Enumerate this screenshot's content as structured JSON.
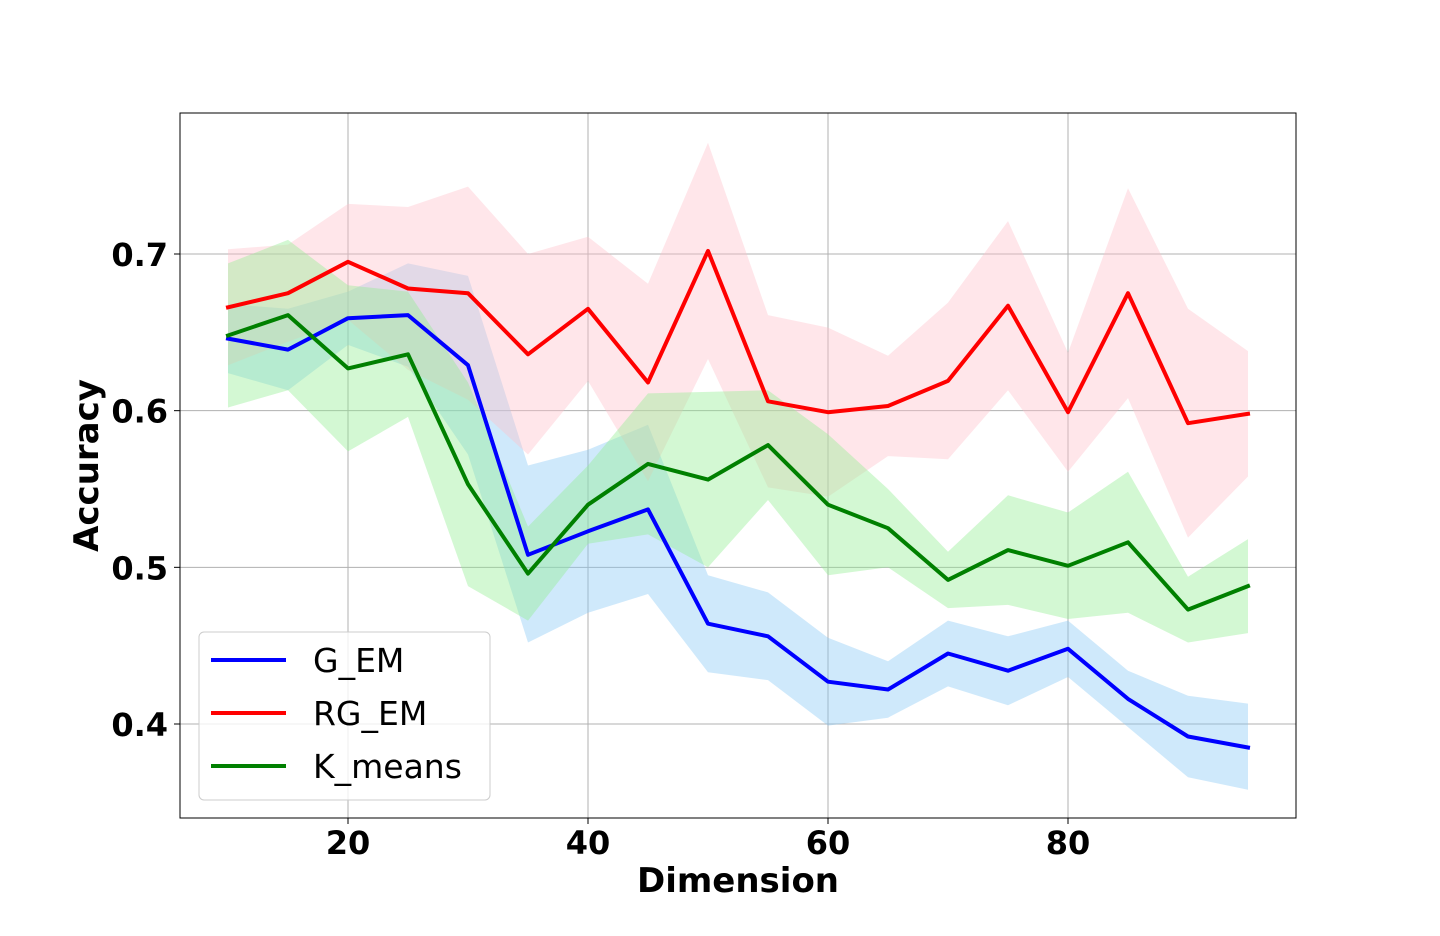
{
  "chart_data": {
    "type": "line",
    "title": "",
    "xlabel": "Dimension",
    "ylabel": "Accuracy",
    "xlim": [
      6,
      99
    ],
    "ylim": [
      0.34,
      0.79
    ],
    "xticks": [
      20,
      40,
      60,
      80
    ],
    "xtick_labels": [
      "20",
      "40",
      "60",
      "80"
    ],
    "yticks": [
      0.4,
      0.5,
      0.6,
      0.7
    ],
    "ytick_labels": [
      "0.4",
      "0.5",
      "0.6",
      "0.7"
    ],
    "grid": true,
    "legend_position": "bottom-left",
    "x": [
      10,
      15,
      20,
      25,
      30,
      35,
      40,
      45,
      50,
      55,
      60,
      65,
      70,
      75,
      80,
      85,
      90,
      95
    ],
    "series": [
      {
        "name": "G_EM",
        "color": "#0000ff",
        "band_color": "#87c8f5",
        "values": [
          0.646,
          0.639,
          0.659,
          0.661,
          0.629,
          0.508,
          0.523,
          0.537,
          0.464,
          0.456,
          0.427,
          0.422,
          0.445,
          0.434,
          0.448,
          0.416,
          0.392,
          0.385
        ],
        "upper": [
          0.668,
          0.665,
          0.676,
          0.694,
          0.686,
          0.565,
          0.575,
          0.591,
          0.495,
          0.484,
          0.455,
          0.44,
          0.466,
          0.456,
          0.466,
          0.434,
          0.418,
          0.413
        ],
        "lower": [
          0.624,
          0.613,
          0.642,
          0.628,
          0.572,
          0.452,
          0.471,
          0.483,
          0.433,
          0.428,
          0.399,
          0.404,
          0.424,
          0.412,
          0.43,
          0.398,
          0.366,
          0.358
        ]
      },
      {
        "name": "RG_EM",
        "color": "#ff0000",
        "band_color": "#ffc0cb",
        "values": [
          0.666,
          0.675,
          0.695,
          0.678,
          0.675,
          0.636,
          0.665,
          0.618,
          0.702,
          0.606,
          0.599,
          0.603,
          0.619,
          0.667,
          0.599,
          0.675,
          0.592,
          0.598
        ],
        "upper": [
          0.703,
          0.706,
          0.732,
          0.73,
          0.743,
          0.7,
          0.711,
          0.681,
          0.771,
          0.661,
          0.653,
          0.635,
          0.669,
          0.721,
          0.637,
          0.742,
          0.665,
          0.638
        ],
        "lower": [
          0.629,
          0.644,
          0.658,
          0.626,
          0.607,
          0.572,
          0.619,
          0.555,
          0.633,
          0.551,
          0.545,
          0.571,
          0.569,
          0.613,
          0.561,
          0.608,
          0.519,
          0.558
        ]
      },
      {
        "name": "K_means",
        "color": "#008000",
        "band_color": "#90ee90",
        "values": [
          0.648,
          0.661,
          0.627,
          0.636,
          0.553,
          0.496,
          0.54,
          0.566,
          0.556,
          0.578,
          0.54,
          0.525,
          0.492,
          0.511,
          0.501,
          0.516,
          0.473,
          0.488
        ],
        "upper": [
          0.694,
          0.709,
          0.68,
          0.676,
          0.618,
          0.526,
          0.565,
          0.611,
          0.612,
          0.613,
          0.585,
          0.55,
          0.51,
          0.546,
          0.535,
          0.561,
          0.494,
          0.518
        ],
        "lower": [
          0.602,
          0.613,
          0.574,
          0.596,
          0.488,
          0.466,
          0.515,
          0.521,
          0.5,
          0.543,
          0.495,
          0.5,
          0.474,
          0.476,
          0.467,
          0.471,
          0.452,
          0.458
        ]
      }
    ]
  }
}
